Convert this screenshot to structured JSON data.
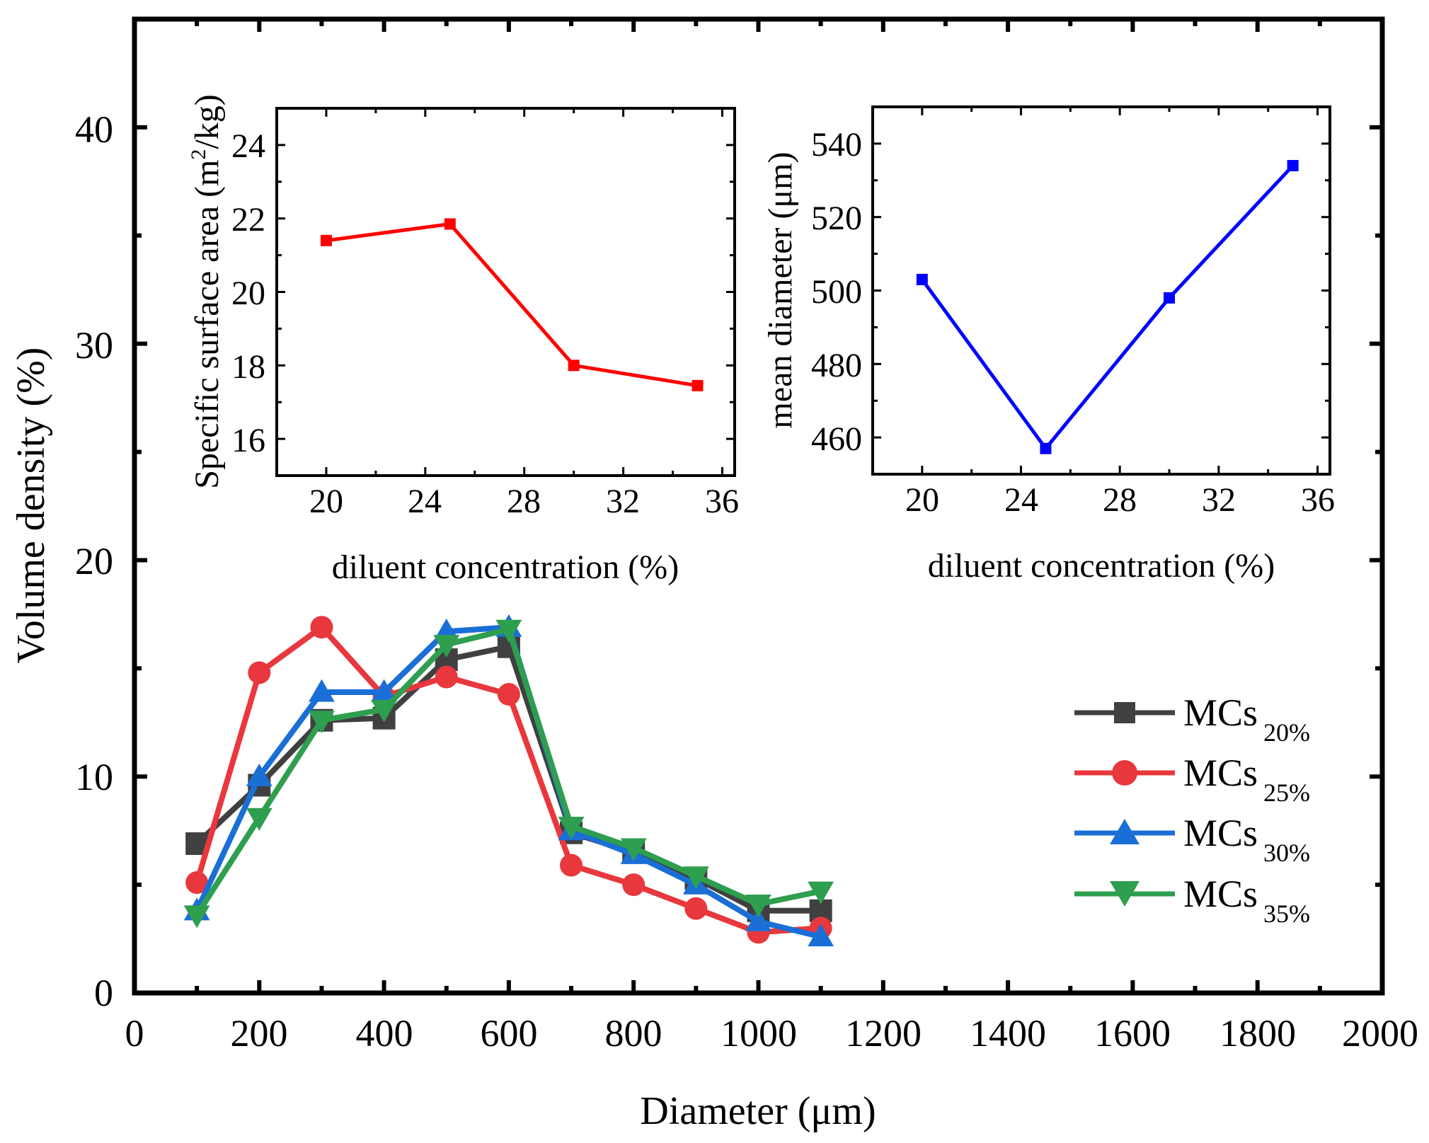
{
  "chart_data": [
    {
      "type": "line",
      "id": "main",
      "title": "",
      "xlabel": "Diameter (μm)",
      "ylabel": "Volume density (%)",
      "xlim": [
        0,
        2000
      ],
      "ylim": [
        0,
        45
      ],
      "xticks": [
        0,
        200,
        400,
        600,
        800,
        1000,
        1200,
        1400,
        1600,
        1800,
        2000
      ],
      "yticks": [
        0,
        10,
        20,
        30,
        40
      ],
      "legend_position": "right",
      "x": [
        100,
        200,
        300,
        400,
        500,
        600,
        700,
        800,
        900,
        1000,
        1100
      ],
      "series": [
        {
          "name": "MCs",
          "subscript": "20%",
          "color": "#404040",
          "marker": "square",
          "values": [
            6.9,
            9.6,
            12.6,
            12.7,
            15.4,
            16.0,
            7.4,
            6.5,
            5.3,
            3.8,
            3.8
          ]
        },
        {
          "name": "MCs",
          "subscript": "25%",
          "color": "#e8383d",
          "marker": "circle",
          "values": [
            5.1,
            14.8,
            16.9,
            13.7,
            14.6,
            13.8,
            5.9,
            5.0,
            3.9,
            2.8,
            3.0
          ]
        },
        {
          "name": "MCs",
          "subscript": "30%",
          "color": "#1a6fd6",
          "marker": "triangle-up",
          "values": [
            3.8,
            10.0,
            13.9,
            13.9,
            16.7,
            16.9,
            7.5,
            6.4,
            5.0,
            3.3,
            2.6
          ]
        },
        {
          "name": "MCs",
          "subscript": "35%",
          "color": "#2e9e4f",
          "marker": "triangle-down",
          "values": [
            3.6,
            8.1,
            12.6,
            13.1,
            16.1,
            16.8,
            7.7,
            6.7,
            5.4,
            4.1,
            4.7
          ]
        }
      ]
    },
    {
      "type": "line",
      "id": "inset-left",
      "title": "",
      "xlabel": "diluent concentration (%)",
      "ylabel_main": "Specific surface area (m",
      "ylabel_sup": "2",
      "ylabel_tail": "/kg)",
      "xlim": [
        18,
        36.5
      ],
      "ylim": [
        15,
        25
      ],
      "xticks": [
        20,
        24,
        28,
        32,
        36
      ],
      "yticks": [
        16,
        18,
        20,
        22,
        24
      ],
      "x": [
        20,
        25,
        30,
        35
      ],
      "series": [
        {
          "name": "Specific surface area",
          "color": "#ff0000",
          "marker": "square",
          "values": [
            21.4,
            21.85,
            18.0,
            17.45
          ]
        }
      ]
    },
    {
      "type": "line",
      "id": "inset-right",
      "title": "",
      "xlabel": "diluent concentration (%)",
      "ylabel": "mean diameter (μm)",
      "xlim": [
        18,
        36.5
      ],
      "ylim": [
        450,
        550
      ],
      "xticks": [
        20,
        24,
        28,
        32,
        36
      ],
      "yticks": [
        460,
        480,
        500,
        520,
        540
      ],
      "x": [
        20,
        25,
        30,
        35
      ],
      "series": [
        {
          "name": "mean diameter",
          "color": "#0000ff",
          "marker": "square",
          "values": [
            503,
            457,
            498,
            534
          ]
        }
      ]
    }
  ]
}
